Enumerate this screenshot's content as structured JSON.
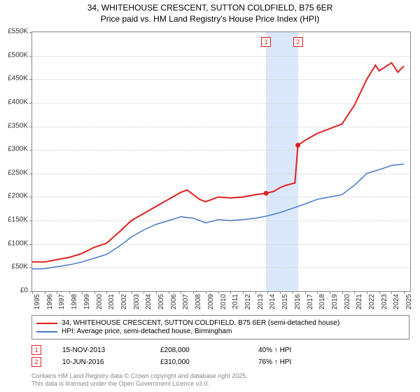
{
  "title_line1": "34, WHITEHOUSE CRESCENT, SUTTON COLDFIELD, B75 6ER",
  "title_line2": "Price paid vs. HM Land Registry's House Price Index (HPI)",
  "chart": {
    "type": "line",
    "x_min": 1995,
    "x_max": 2025.5,
    "y_min": 0,
    "y_max": 550000,
    "y_tick_step": 50000,
    "y_tick_labels": [
      "£0",
      "£50K",
      "£100K",
      "£150K",
      "£200K",
      "£250K",
      "£300K",
      "£350K",
      "£400K",
      "£450K",
      "£500K",
      "£550K"
    ],
    "x_ticks": [
      1995,
      1996,
      1997,
      1998,
      1999,
      2000,
      2001,
      2002,
      2003,
      2004,
      2005,
      2006,
      2007,
      2008,
      2009,
      2010,
      2011,
      2012,
      2013,
      2014,
      2015,
      2016,
      2017,
      2018,
      2019,
      2020,
      2021,
      2022,
      2023,
      2024,
      2025
    ],
    "highlight_band": {
      "x_start": 2013.87,
      "x_end": 2016.44,
      "color": "#dbe8fb"
    },
    "series": [
      {
        "name": "price_paid",
        "color": "#e02020",
        "width": 2,
        "points": [
          [
            1995,
            62000
          ],
          [
            1996,
            62000
          ],
          [
            1997,
            67000
          ],
          [
            1998,
            72000
          ],
          [
            1999,
            80000
          ],
          [
            2000,
            93000
          ],
          [
            2001,
            102000
          ],
          [
            2002,
            125000
          ],
          [
            2003,
            150000
          ],
          [
            2004,
            165000
          ],
          [
            2005,
            180000
          ],
          [
            2006,
            195000
          ],
          [
            2007,
            210000
          ],
          [
            2007.5,
            215000
          ],
          [
            2008,
            205000
          ],
          [
            2008.5,
            195000
          ],
          [
            2009,
            190000
          ],
          [
            2010,
            200000
          ],
          [
            2011,
            198000
          ],
          [
            2012,
            200000
          ],
          [
            2013,
            205000
          ],
          [
            2013.87,
            208000
          ],
          [
            2014.5,
            212000
          ],
          [
            2015,
            220000
          ],
          [
            2015.5,
            225000
          ],
          [
            2016.2,
            230000
          ],
          [
            2016.44,
            310000
          ],
          [
            2017,
            320000
          ],
          [
            2018,
            335000
          ],
          [
            2019,
            345000
          ],
          [
            2020,
            355000
          ],
          [
            2021,
            395000
          ],
          [
            2022,
            450000
          ],
          [
            2022.7,
            480000
          ],
          [
            2023,
            468000
          ],
          [
            2024,
            485000
          ],
          [
            2024.5,
            465000
          ],
          [
            2025,
            478000
          ]
        ]
      },
      {
        "name": "hpi",
        "color": "#4a78c8",
        "width": 1.5,
        "points": [
          [
            1995,
            47000
          ],
          [
            1996,
            48000
          ],
          [
            1997,
            52000
          ],
          [
            1998,
            56000
          ],
          [
            1999,
            62000
          ],
          [
            2000,
            70000
          ],
          [
            2001,
            78000
          ],
          [
            2002,
            95000
          ],
          [
            2003,
            115000
          ],
          [
            2004,
            130000
          ],
          [
            2005,
            142000
          ],
          [
            2006,
            150000
          ],
          [
            2007,
            158000
          ],
          [
            2008,
            155000
          ],
          [
            2009,
            145000
          ],
          [
            2010,
            152000
          ],
          [
            2011,
            150000
          ],
          [
            2012,
            152000
          ],
          [
            2013,
            155000
          ],
          [
            2014,
            160000
          ],
          [
            2015,
            167000
          ],
          [
            2016,
            176000
          ],
          [
            2017,
            185000
          ],
          [
            2018,
            195000
          ],
          [
            2019,
            200000
          ],
          [
            2020,
            205000
          ],
          [
            2021,
            225000
          ],
          [
            2022,
            250000
          ],
          [
            2023,
            258000
          ],
          [
            2024,
            267000
          ],
          [
            2025,
            270000
          ]
        ]
      }
    ],
    "sale_markers": [
      {
        "label": "1",
        "x": 2013.87,
        "y": 208000,
        "top_y": 540000
      },
      {
        "label": "2",
        "x": 2016.44,
        "y": 310000,
        "top_y": 540000
      }
    ]
  },
  "legend": [
    {
      "color": "#e02020",
      "text": "34, WHITEHOUSE CRESCENT, SUTTON COLDFIELD, B75 6ER (semi-detached house)"
    },
    {
      "color": "#4a78c8",
      "text": "HPI: Average price, semi-detached house, Birmingham"
    }
  ],
  "sales": [
    {
      "marker": "1",
      "date": "15-NOV-2013",
      "price": "£208,000",
      "delta": "40% ↑ HPI"
    },
    {
      "marker": "2",
      "date": "10-JUN-2016",
      "price": "£310,000",
      "delta": "76% ↑ HPI"
    }
  ],
  "footer_line1": "Contains HM Land Registry data © Crown copyright and database right 2025.",
  "footer_line2": "This data is licensed under the Open Government Licence v3.0."
}
